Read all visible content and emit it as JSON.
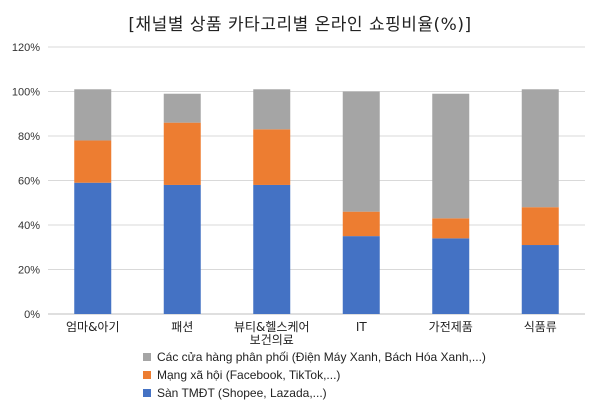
{
  "chart_data": {
    "type": "bar",
    "stacked": true,
    "title": "[채널별 상품 카타고리별 온라인 쇼핑비율(%)]",
    "categories": [
      "엄마&아기",
      "패션",
      "뷰티&헬스케어\n보건의료",
      "IT",
      "가전제품",
      "식품류"
    ],
    "series": [
      {
        "name": "Sàn TMĐT (Shopee, Lazada,...)",
        "color": "#4472C4",
        "values": [
          59,
          58,
          58,
          35,
          34,
          31
        ]
      },
      {
        "name": "Mạng xã hội (Facebook, TikTok,...)",
        "color": "#ED7D31",
        "values": [
          19,
          28,
          25,
          11,
          9,
          17
        ]
      },
      {
        "name": "Các cửa hàng phân phối (Điện Máy Xanh, Bách Hóa Xanh,...)",
        "color": "#A5A5A5",
        "values": [
          23,
          13,
          18,
          54,
          56,
          53
        ]
      }
    ],
    "ylim": [
      0,
      120
    ],
    "yticks": [
      0,
      20,
      40,
      60,
      80,
      100,
      120
    ],
    "ytick_suffix": "%",
    "grid": true,
    "legend_position": "bottom"
  },
  "legend_order": [
    2,
    1,
    0
  ]
}
